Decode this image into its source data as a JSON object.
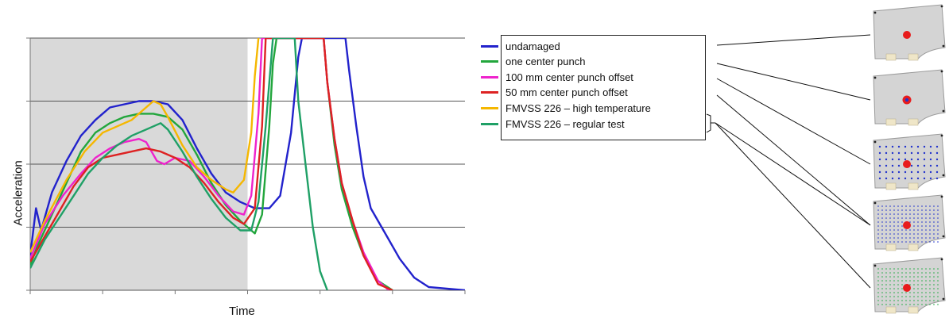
{
  "chart_data": {
    "type": "line",
    "title": "",
    "xlabel": "Time",
    "ylabel": "Acceleration",
    "xlim": [
      0,
      6
    ],
    "ylim": [
      0,
      4
    ],
    "grid": "horizontal",
    "shaded_region": {
      "x": [
        0,
        3
      ],
      "color": "#d9d9d9"
    },
    "legend_position": "right",
    "series": [
      {
        "name": "undamaged",
        "color": "#2222cc",
        "points": [
          [
            0,
            0.55
          ],
          [
            0.08,
            1.3
          ],
          [
            0.15,
            0.95
          ],
          [
            0.3,
            1.55
          ],
          [
            0.5,
            2.05
          ],
          [
            0.7,
            2.45
          ],
          [
            0.9,
            2.7
          ],
          [
            1.1,
            2.9
          ],
          [
            1.3,
            2.95
          ],
          [
            1.5,
            3.0
          ],
          [
            1.7,
            3.0
          ],
          [
            1.9,
            2.95
          ],
          [
            2.1,
            2.7
          ],
          [
            2.3,
            2.25
          ],
          [
            2.5,
            1.85
          ],
          [
            2.7,
            1.55
          ],
          [
            2.9,
            1.4
          ],
          [
            3.1,
            1.3
          ],
          [
            3.3,
            1.3
          ],
          [
            3.45,
            1.5
          ],
          [
            3.6,
            2.5
          ],
          [
            3.7,
            3.7
          ],
          [
            3.75,
            4.0
          ],
          [
            4.35,
            4.0
          ],
          [
            4.4,
            3.5
          ],
          [
            4.5,
            2.6
          ],
          [
            4.6,
            1.8
          ],
          [
            4.7,
            1.3
          ],
          [
            4.9,
            0.9
          ],
          [
            5.1,
            0.5
          ],
          [
            5.3,
            0.2
          ],
          [
            5.5,
            0.05
          ],
          [
            6,
            0.0
          ]
        ]
      },
      {
        "name": "one center punch",
        "color": "#22a63c",
        "points": [
          [
            0,
            0.4
          ],
          [
            0.1,
            0.7
          ],
          [
            0.3,
            1.2
          ],
          [
            0.5,
            1.7
          ],
          [
            0.7,
            2.2
          ],
          [
            0.9,
            2.5
          ],
          [
            1.1,
            2.65
          ],
          [
            1.3,
            2.75
          ],
          [
            1.5,
            2.8
          ],
          [
            1.7,
            2.8
          ],
          [
            1.9,
            2.75
          ],
          [
            2.1,
            2.55
          ],
          [
            2.3,
            2.15
          ],
          [
            2.5,
            1.7
          ],
          [
            2.7,
            1.35
          ],
          [
            2.9,
            1.1
          ],
          [
            3.1,
            0.9
          ],
          [
            3.2,
            1.2
          ],
          [
            3.3,
            2.6
          ],
          [
            3.35,
            3.6
          ],
          [
            3.4,
            4.0
          ],
          [
            4.05,
            4.0
          ],
          [
            4.1,
            3.3
          ],
          [
            4.2,
            2.3
          ],
          [
            4.3,
            1.6
          ],
          [
            4.45,
            1.0
          ],
          [
            4.6,
            0.55
          ],
          [
            4.8,
            0.15
          ],
          [
            5.0,
            0.0
          ]
        ]
      },
      {
        "name": "100 mm center punch offset",
        "color": "#ee22cc",
        "points": [
          [
            0,
            0.5
          ],
          [
            0.2,
            1.05
          ],
          [
            0.45,
            1.5
          ],
          [
            0.7,
            1.85
          ],
          [
            0.9,
            2.1
          ],
          [
            1.1,
            2.25
          ],
          [
            1.3,
            2.35
          ],
          [
            1.5,
            2.4
          ],
          [
            1.6,
            2.35
          ],
          [
            1.75,
            2.05
          ],
          [
            1.85,
            2.0
          ],
          [
            2.0,
            2.1
          ],
          [
            2.2,
            2.05
          ],
          [
            2.4,
            1.8
          ],
          [
            2.6,
            1.5
          ],
          [
            2.8,
            1.25
          ],
          [
            2.95,
            1.2
          ],
          [
            3.05,
            1.5
          ],
          [
            3.15,
            2.8
          ],
          [
            3.2,
            4.0
          ],
          [
            4.05,
            4.0
          ],
          [
            4.1,
            3.3
          ],
          [
            4.2,
            2.4
          ],
          [
            4.3,
            1.7
          ],
          [
            4.45,
            1.1
          ],
          [
            4.6,
            0.6
          ],
          [
            4.8,
            0.15
          ],
          [
            4.95,
            0.0
          ]
        ]
      },
      {
        "name": "50 mm center punch offset",
        "color": "#dd2222",
        "points": [
          [
            0,
            0.45
          ],
          [
            0.2,
            0.85
          ],
          [
            0.4,
            1.25
          ],
          [
            0.6,
            1.65
          ],
          [
            0.8,
            1.95
          ],
          [
            1.0,
            2.1
          ],
          [
            1.2,
            2.15
          ],
          [
            1.4,
            2.2
          ],
          [
            1.6,
            2.25
          ],
          [
            1.8,
            2.2
          ],
          [
            2.0,
            2.1
          ],
          [
            2.2,
            1.95
          ],
          [
            2.4,
            1.7
          ],
          [
            2.6,
            1.4
          ],
          [
            2.8,
            1.15
          ],
          [
            2.95,
            1.05
          ],
          [
            3.1,
            1.3
          ],
          [
            3.2,
            2.6
          ],
          [
            3.25,
            4.0
          ],
          [
            4.05,
            4.0
          ],
          [
            4.1,
            3.3
          ],
          [
            4.2,
            2.4
          ],
          [
            4.3,
            1.7
          ],
          [
            4.45,
            1.1
          ],
          [
            4.6,
            0.55
          ],
          [
            4.8,
            0.1
          ],
          [
            5.0,
            0.0
          ]
        ]
      },
      {
        "name": "FMVSS 226 – high temperature",
        "color": "#f5b700",
        "points": [
          [
            0,
            0.6
          ],
          [
            0.2,
            1.1
          ],
          [
            0.5,
            1.75
          ],
          [
            0.75,
            2.2
          ],
          [
            1.0,
            2.5
          ],
          [
            1.2,
            2.6
          ],
          [
            1.4,
            2.7
          ],
          [
            1.55,
            2.85
          ],
          [
            1.7,
            3.0
          ],
          [
            1.8,
            2.95
          ],
          [
            1.9,
            2.75
          ],
          [
            2.1,
            2.3
          ],
          [
            2.3,
            1.95
          ],
          [
            2.5,
            1.75
          ],
          [
            2.7,
            1.6
          ],
          [
            2.8,
            1.55
          ],
          [
            2.95,
            1.75
          ],
          [
            3.05,
            2.5
          ],
          [
            3.1,
            3.4
          ],
          [
            3.15,
            4.0
          ]
        ]
      },
      {
        "name": "FMVSS 226 – regular test",
        "color": "#1fa066",
        "points": [
          [
            0,
            0.35
          ],
          [
            0.2,
            0.8
          ],
          [
            0.4,
            1.15
          ],
          [
            0.6,
            1.5
          ],
          [
            0.8,
            1.85
          ],
          [
            1.0,
            2.1
          ],
          [
            1.2,
            2.3
          ],
          [
            1.4,
            2.45
          ],
          [
            1.6,
            2.55
          ],
          [
            1.8,
            2.65
          ],
          [
            1.9,
            2.55
          ],
          [
            2.1,
            2.2
          ],
          [
            2.3,
            1.8
          ],
          [
            2.5,
            1.45
          ],
          [
            2.7,
            1.15
          ],
          [
            2.9,
            0.95
          ],
          [
            3.05,
            0.95
          ],
          [
            3.15,
            1.4
          ],
          [
            3.25,
            2.6
          ],
          [
            3.35,
            4.0
          ],
          [
            3.65,
            4.0
          ],
          [
            3.7,
            3.0
          ],
          [
            3.8,
            2.0
          ],
          [
            3.9,
            1.0
          ],
          [
            4.0,
            0.3
          ],
          [
            4.1,
            0.0
          ]
        ]
      }
    ]
  },
  "legend": {
    "items": [
      {
        "label": "undamaged",
        "color": "#2222cc"
      },
      {
        "label": "one center punch",
        "color": "#22a63c"
      },
      {
        "label": "100 mm center punch offset",
        "color": "#ee22cc"
      },
      {
        "label": "50 mm center punch offset",
        "color": "#dd2222"
      },
      {
        "label": "FMVSS 226 – high temperature",
        "color": "#f5b700"
      },
      {
        "label": "FMVSS 226 – regular test",
        "color": "#1fa066"
      }
    ]
  },
  "panels": [
    {
      "pattern": "none",
      "dot_color": ""
    },
    {
      "pattern": "single",
      "dot_color": "#2233cc"
    },
    {
      "pattern": "sparse-grid",
      "dot_color": "#2233cc"
    },
    {
      "pattern": "dense-grid",
      "dot_color": "#2233cc"
    },
    {
      "pattern": "dense-grid-mixed",
      "dot_color": "#22aa44"
    }
  ]
}
